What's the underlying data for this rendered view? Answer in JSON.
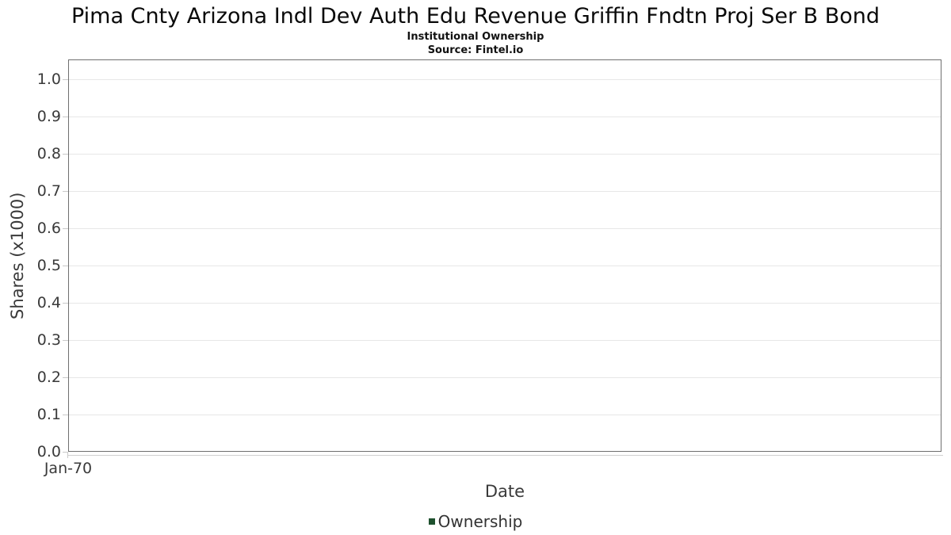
{
  "header": {
    "title": "Pima Cnty Arizona Indl Dev Auth Edu Revenue Griffin Fndtn Proj Ser B Bond",
    "subtitle": "Institutional Ownership",
    "source": "Source: Fintel.io"
  },
  "chart_data": {
    "type": "line",
    "title": "Pima Cnty Arizona Indl Dev Auth Edu Revenue Griffin Fndtn Proj Ser B Bond",
    "subtitle": "Institutional Ownership",
    "source": "Source: Fintel.io",
    "xlabel": "Date",
    "ylabel": "Shares (x1000)",
    "x_tick_labels": [
      "Jan-70"
    ],
    "y_tick_labels": [
      "1.0",
      "0.9",
      "0.8",
      "0.7",
      "0.6",
      "0.5",
      "0.4",
      "0.3",
      "0.2",
      "0.1",
      "0.0"
    ],
    "ylim": [
      0.0,
      1.05
    ],
    "grid": true,
    "legend_position": "bottom",
    "series": [
      {
        "name": "Ownership",
        "color": "#1e512e",
        "x": [],
        "values": []
      }
    ]
  },
  "legend": {
    "entries": [
      {
        "label": "Ownership",
        "color": "#1e512e"
      }
    ]
  },
  "colors": {
    "legend_green": "#1e512e",
    "gridline": "#e7e7e7",
    "plot_border": "#6f6f6f",
    "tick_mark": "#c9c9c9",
    "label_text": "#3a3a3a"
  }
}
